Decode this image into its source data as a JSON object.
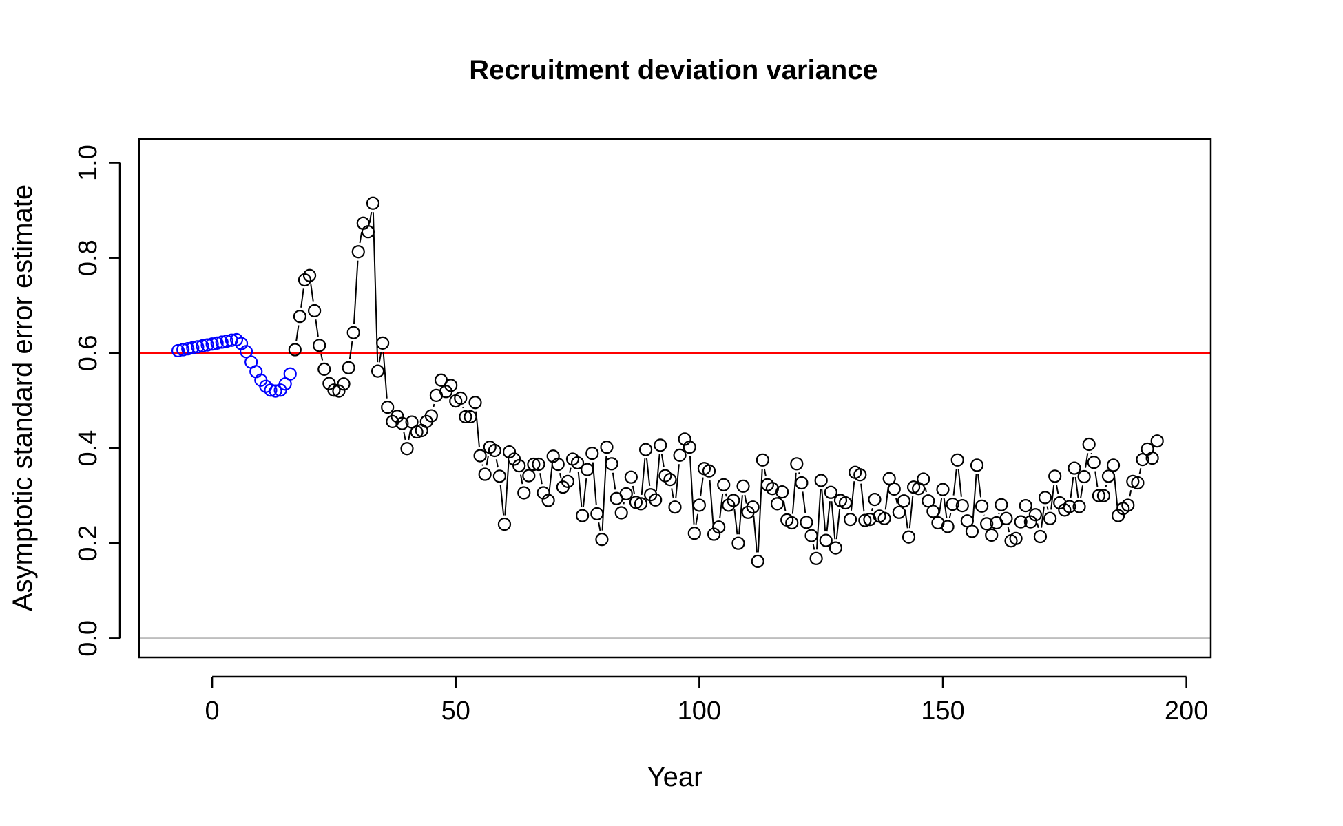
{
  "chart_data": {
    "type": "scatter",
    "title": "Recruitment deviation variance",
    "xlabel": "Year",
    "ylabel": "Asymptotic standard error estimate",
    "xlim": [
      -15,
      205
    ],
    "ylim": [
      -0.04,
      1.05
    ],
    "xticks": [
      0,
      50,
      100,
      150,
      200
    ],
    "yticks": [
      0.0,
      0.2,
      0.4,
      0.6,
      0.8,
      1.0
    ],
    "xtick_labels": [
      "0",
      "50",
      "100",
      "150",
      "200"
    ],
    "ytick_labels": [
      "0.0",
      "0.2",
      "0.4",
      "0.6",
      "0.8",
      "1.0"
    ],
    "reference_lines": [
      {
        "y": 0.6,
        "color": "#ff0000"
      },
      {
        "y": 0.0,
        "color": "#bebebe"
      }
    ],
    "grid": false,
    "series": [
      {
        "color": "#0000ff",
        "marker": "open-circle",
        "x": [
          -7,
          -6,
          -5,
          -4,
          -3,
          -2,
          -1,
          0,
          1,
          2,
          3,
          4,
          5,
          6,
          7,
          8,
          9,
          10,
          11,
          12,
          13,
          14,
          15,
          16
        ],
        "y": [
          0.605,
          0.607,
          0.609,
          0.611,
          0.613,
          0.615,
          0.617,
          0.619,
          0.621,
          0.623,
          0.625,
          0.627,
          0.628,
          0.62,
          0.603,
          0.581,
          0.561,
          0.543,
          0.53,
          0.522,
          0.52,
          0.522,
          0.535,
          0.556
        ]
      },
      {
        "color": "#000000",
        "marker": "open-circle",
        "x": [
          17,
          18,
          19,
          20,
          21,
          22,
          23,
          24,
          25,
          26,
          27,
          28,
          29,
          30,
          31,
          32,
          33,
          34,
          35,
          36,
          37,
          38,
          39,
          40,
          41,
          42,
          43,
          44,
          45,
          46,
          47,
          48,
          49,
          50,
          51,
          52,
          53,
          54,
          55,
          56,
          57,
          58,
          59,
          60,
          61,
          62,
          63,
          64,
          65,
          66,
          67,
          68,
          69,
          70,
          71,
          72,
          73,
          74,
          75,
          76,
          77,
          78,
          79,
          80,
          81,
          82,
          83,
          84,
          85,
          86,
          87,
          88,
          89,
          90,
          91,
          92,
          93,
          94,
          95,
          96,
          97,
          98,
          99,
          100,
          101,
          102,
          103,
          104,
          105,
          106,
          107,
          108,
          109,
          110,
          111,
          112,
          113,
          114,
          115,
          116,
          117,
          118,
          119,
          120,
          121,
          122,
          123,
          124,
          125,
          126,
          127,
          128,
          129,
          130,
          131,
          132,
          133,
          134,
          135,
          136,
          137,
          138,
          139,
          140,
          141,
          142,
          143,
          144,
          145,
          146,
          147,
          148,
          149,
          150,
          151,
          152,
          153,
          154,
          155,
          156,
          157,
          158,
          159,
          160,
          161,
          162,
          163,
          164,
          165,
          166,
          167,
          168,
          169,
          170,
          171,
          172,
          173,
          174,
          175,
          176,
          177,
          178,
          179,
          180,
          181,
          182,
          183,
          184,
          185,
          186,
          187,
          188,
          189,
          190,
          191,
          192,
          193,
          194
        ],
        "y": [
          0.607,
          0.677,
          0.754,
          0.763,
          0.689,
          0.616,
          0.566,
          0.536,
          0.522,
          0.52,
          0.535,
          0.569,
          0.643,
          0.813,
          0.873,
          0.855,
          0.915,
          0.562,
          0.621,
          0.486,
          0.456,
          0.467,
          0.452,
          0.399,
          0.455,
          0.434,
          0.437,
          0.456,
          0.468,
          0.511,
          0.543,
          0.519,
          0.532,
          0.499,
          0.505,
          0.466,
          0.466,
          0.496,
          0.384,
          0.345,
          0.402,
          0.395,
          0.341,
          0.24,
          0.392,
          0.377,
          0.363,
          0.306,
          0.342,
          0.366,
          0.366,
          0.306,
          0.29,
          0.383,
          0.366,
          0.318,
          0.33,
          0.377,
          0.369,
          0.258,
          0.355,
          0.389,
          0.262,
          0.208,
          0.402,
          0.367,
          0.294,
          0.264,
          0.304,
          0.339,
          0.286,
          0.283,
          0.397,
          0.302,
          0.291,
          0.406,
          0.342,
          0.334,
          0.276,
          0.385,
          0.419,
          0.402,
          0.221,
          0.28,
          0.357,
          0.352,
          0.219,
          0.234,
          0.323,
          0.28,
          0.29,
          0.2,
          0.32,
          0.265,
          0.276,
          0.162,
          0.375,
          0.323,
          0.315,
          0.283,
          0.308,
          0.249,
          0.243,
          0.367,
          0.327,
          0.244,
          0.216,
          0.168,
          0.332,
          0.206,
          0.307,
          0.19,
          0.29,
          0.285,
          0.25,
          0.349,
          0.344,
          0.248,
          0.25,
          0.292,
          0.257,
          0.252,
          0.336,
          0.314,
          0.265,
          0.289,
          0.213,
          0.318,
          0.315,
          0.335,
          0.289,
          0.267,
          0.243,
          0.313,
          0.235,
          0.282,
          0.375,
          0.279,
          0.247,
          0.225,
          0.364,
          0.278,
          0.241,
          0.217,
          0.243,
          0.281,
          0.252,
          0.205,
          0.21,
          0.245,
          0.279,
          0.245,
          0.26,
          0.214,
          0.296,
          0.252,
          0.341,
          0.285,
          0.27,
          0.277,
          0.358,
          0.277,
          0.34,
          0.408,
          0.37,
          0.3,
          0.3,
          0.341,
          0.364,
          0.258,
          0.273,
          0.28,
          0.33,
          0.327,
          0.376,
          0.398,
          0.379,
          0.415
        ]
      }
    ]
  }
}
